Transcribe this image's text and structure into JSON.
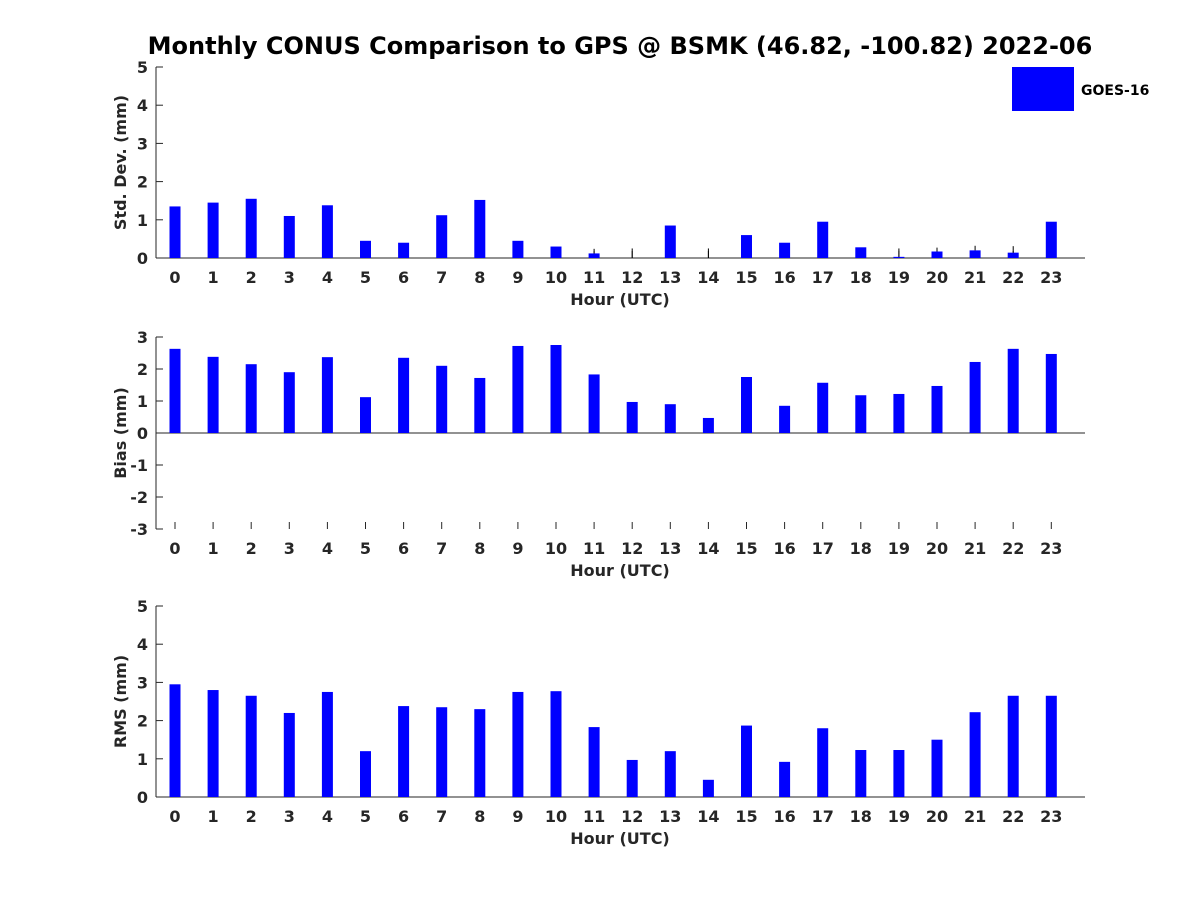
{
  "figure": {
    "title": "Monthly CONUS Comparison to GPS @ BSMK (46.82, -100.82) 2022-06",
    "legend": {
      "label": "GOES-16",
      "color": "#0000ff",
      "placement": "top-right"
    }
  },
  "chart_data": [
    {
      "type": "bar",
      "xlabel": "Hour (UTC)",
      "ylabel": "Std. Dev. (mm)",
      "ylim": [
        0,
        5
      ],
      "yticks": [
        0,
        1,
        2,
        3,
        4,
        5
      ],
      "categories": [
        "0",
        "1",
        "2",
        "3",
        "4",
        "5",
        "6",
        "7",
        "8",
        "9",
        "10",
        "11",
        "12",
        "13",
        "14",
        "15",
        "16",
        "17",
        "18",
        "19",
        "20",
        "21",
        "22",
        "23"
      ],
      "series": [
        {
          "name": "GOES-16",
          "color": "#0000ff",
          "values": [
            1.35,
            1.45,
            1.55,
            1.1,
            1.38,
            0.45,
            0.4,
            1.12,
            1.52,
            0.45,
            0.3,
            0.12,
            0,
            0.85,
            0,
            0.6,
            0.4,
            0.95,
            0.28,
            0.03,
            0.17,
            0.2,
            0.14,
            0.95
          ],
          "errors": [
            0,
            0,
            0,
            0,
            0,
            0,
            0,
            0,
            0,
            0,
            0,
            0.12,
            0.25,
            0,
            0.25,
            0,
            0,
            0,
            0,
            0.22,
            0.1,
            0.12,
            0.17,
            0
          ]
        }
      ]
    },
    {
      "type": "bar",
      "xlabel": "Hour (UTC)",
      "ylabel": "Bias (mm)",
      "ylim": [
        -3,
        3
      ],
      "yticks": [
        -3,
        -2,
        -1,
        0,
        1,
        2,
        3
      ],
      "categories": [
        "0",
        "1",
        "2",
        "3",
        "4",
        "5",
        "6",
        "7",
        "8",
        "9",
        "10",
        "11",
        "12",
        "13",
        "14",
        "15",
        "16",
        "17",
        "18",
        "19",
        "20",
        "21",
        "22",
        "23"
      ],
      "series": [
        {
          "name": "GOES-16",
          "color": "#0000ff",
          "values": [
            2.63,
            2.38,
            2.15,
            1.9,
            2.37,
            1.12,
            2.35,
            2.1,
            1.72,
            2.72,
            2.75,
            1.83,
            0.97,
            0.9,
            0.47,
            1.75,
            0.85,
            1.57,
            1.18,
            1.22,
            1.47,
            2.22,
            2.63,
            2.47
          ]
        }
      ]
    },
    {
      "type": "bar",
      "xlabel": "Hour (UTC)",
      "ylabel": "RMS (mm)",
      "ylim": [
        0,
        5
      ],
      "yticks": [
        0,
        1,
        2,
        3,
        4,
        5
      ],
      "categories": [
        "0",
        "1",
        "2",
        "3",
        "4",
        "5",
        "6",
        "7",
        "8",
        "9",
        "10",
        "11",
        "12",
        "13",
        "14",
        "15",
        "16",
        "17",
        "18",
        "19",
        "20",
        "21",
        "22",
        "23"
      ],
      "series": [
        {
          "name": "GOES-16",
          "color": "#0000ff",
          "values": [
            2.95,
            2.8,
            2.65,
            2.2,
            2.75,
            1.2,
            2.38,
            2.35,
            2.3,
            2.75,
            2.77,
            1.83,
            0.97,
            1.2,
            0.45,
            1.87,
            0.92,
            1.8,
            1.23,
            1.23,
            1.5,
            2.22,
            2.65,
            2.65
          ]
        }
      ]
    }
  ]
}
